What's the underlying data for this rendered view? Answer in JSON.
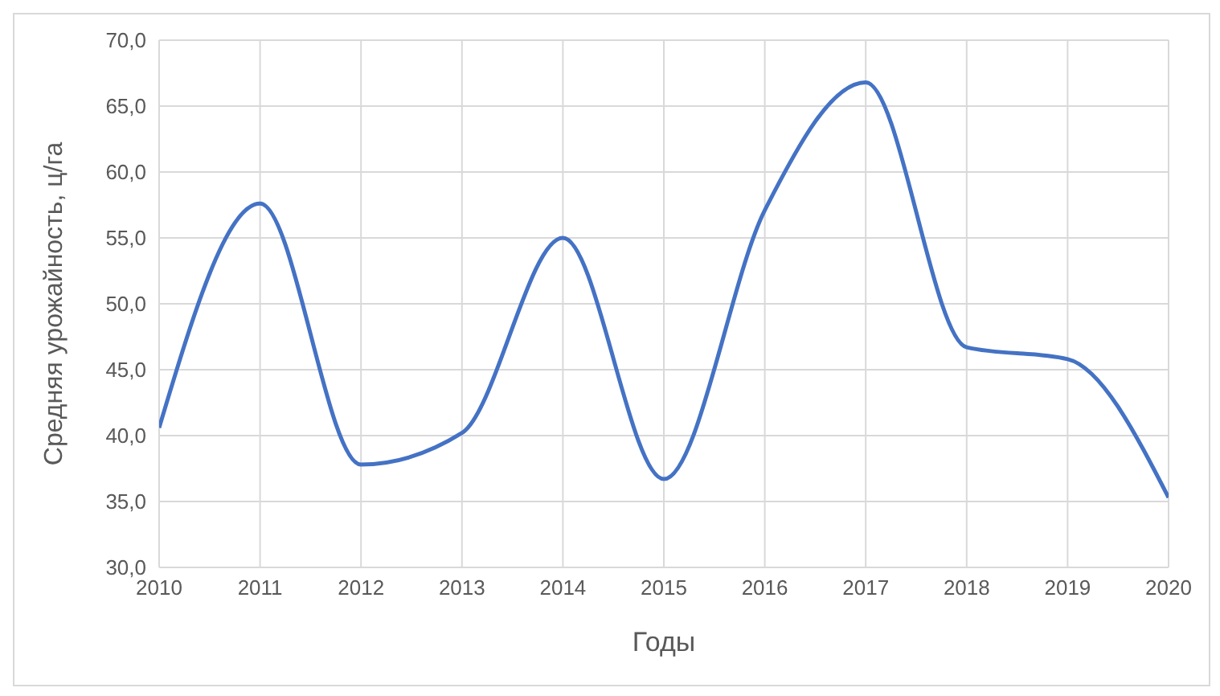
{
  "chart_data": {
    "type": "line",
    "xlabel": "Годы",
    "ylabel": "Средняя урожайность, ц/га",
    "x": [
      2010,
      2011,
      2012,
      2013,
      2014,
      2015,
      2016,
      2017,
      2018,
      2019,
      2020
    ],
    "series": [
      {
        "color": "#4472c4",
        "values": [
          40.6,
          57.6,
          37.8,
          40.2,
          55.0,
          36.7,
          57.1,
          66.8,
          46.7,
          45.8,
          35.3
        ]
      }
    ],
    "xlim": [
      2010,
      2020
    ],
    "xticks": [
      2010,
      2011,
      2012,
      2013,
      2014,
      2015,
      2016,
      2017,
      2018,
      2019,
      2020
    ],
    "ylim": [
      30,
      70
    ],
    "yticks": [
      {
        "value": 30,
        "label": "30,0"
      },
      {
        "value": 35,
        "label": "35,0"
      },
      {
        "value": 40,
        "label": "40,0"
      },
      {
        "value": 45,
        "label": "45,0"
      },
      {
        "value": 50,
        "label": "50,0"
      },
      {
        "value": 55,
        "label": "55,0"
      },
      {
        "value": 60,
        "label": "60,0"
      },
      {
        "value": 65,
        "label": "65,0"
      },
      {
        "value": 70,
        "label": "70,0"
      }
    ],
    "grid": true,
    "legend": false,
    "marker": "none",
    "line_style": "solid"
  }
}
